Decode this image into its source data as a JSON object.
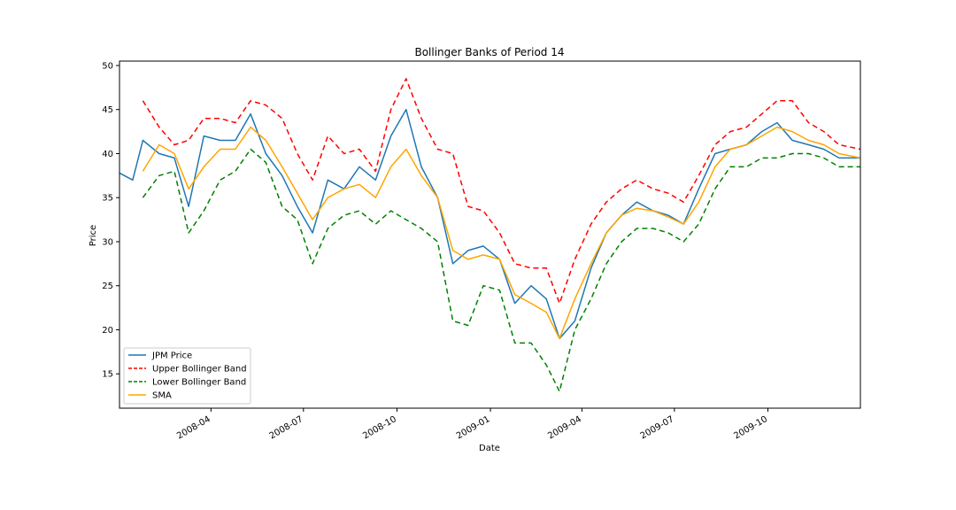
{
  "chart_data": {
    "type": "line",
    "title": "Bollinger Banks of Period 14",
    "xlabel": "Date",
    "ylabel": "Price",
    "xlim": [
      "2008-01-02",
      "2009-12-31"
    ],
    "ylim": [
      11.1,
      50.5
    ],
    "x_ticks": [
      "2008-04",
      "2008-07",
      "2008-10",
      "2009-01",
      "2009-04",
      "2009-07",
      "2009-10"
    ],
    "y_ticks": [
      15,
      20,
      25,
      30,
      35,
      40,
      45,
      50
    ],
    "grid": false,
    "legend_position": "lower-left",
    "x": [
      "2008-01-02",
      "2008-01-15",
      "2008-01-25",
      "2008-02-10",
      "2008-02-25",
      "2008-03-10",
      "2008-03-25",
      "2008-04-10",
      "2008-04-25",
      "2008-05-10",
      "2008-05-25",
      "2008-06-10",
      "2008-06-25",
      "2008-07-10",
      "2008-07-25",
      "2008-08-10",
      "2008-08-25",
      "2008-09-10",
      "2008-09-25",
      "2008-10-10",
      "2008-10-25",
      "2008-11-10",
      "2008-11-25",
      "2008-12-10",
      "2008-12-25",
      "2009-01-10",
      "2009-01-25",
      "2009-02-10",
      "2009-02-25",
      "2009-03-10",
      "2009-03-25",
      "2009-04-10",
      "2009-04-25",
      "2009-05-10",
      "2009-05-25",
      "2009-06-10",
      "2009-06-25",
      "2009-07-10",
      "2009-07-25",
      "2009-08-10",
      "2009-08-25",
      "2009-09-10",
      "2009-09-25",
      "2009-10-10",
      "2009-10-25",
      "2009-11-10",
      "2009-11-25",
      "2009-12-10",
      "2009-12-31"
    ],
    "series": [
      {
        "name": "JPM Price",
        "color": "#1f77b4",
        "dash": "",
        "values": [
          37.8,
          37.0,
          41.5,
          40.0,
          39.5,
          34.0,
          42.0,
          41.5,
          41.5,
          44.5,
          40.0,
          37.5,
          34.0,
          31.0,
          37.0,
          36.0,
          38.5,
          37.0,
          42.0,
          45.0,
          38.5,
          35.0,
          27.5,
          29.0,
          29.5,
          28.0,
          23.0,
          25.0,
          23.5,
          19.0,
          21.0,
          27.0,
          31.0,
          33.0,
          34.5,
          33.5,
          33.0,
          32.0,
          36.0,
          40.0,
          40.5,
          41.0,
          42.5,
          43.5,
          41.5,
          41.0,
          40.5,
          39.5,
          39.5
        ]
      },
      {
        "name": "Upper Bollinger Band",
        "color": "#ff0000",
        "dash": "6,4",
        "values": [
          null,
          null,
          46.0,
          43.0,
          41.0,
          41.5,
          44.0,
          44.0,
          43.5,
          46.0,
          45.5,
          44.0,
          40.0,
          37.0,
          42.0,
          40.0,
          40.5,
          38.0,
          45.0,
          48.5,
          44.0,
          40.5,
          40.0,
          34.0,
          33.5,
          31.0,
          27.5,
          27.0,
          27.0,
          23.0,
          28.0,
          32.0,
          34.5,
          36.0,
          37.0,
          36.0,
          35.5,
          34.5,
          37.5,
          41.0,
          42.5,
          43.0,
          44.5,
          46.0,
          46.0,
          43.5,
          42.5,
          41.0,
          40.5
        ]
      },
      {
        "name": "Lower Bollinger Band",
        "color": "#008000",
        "dash": "6,4",
        "values": [
          null,
          null,
          35.0,
          37.5,
          38.0,
          31.0,
          33.5,
          37.0,
          38.0,
          40.5,
          39.0,
          34.0,
          32.5,
          27.5,
          31.5,
          33.0,
          33.5,
          32.0,
          33.5,
          32.5,
          31.5,
          30.0,
          21.0,
          20.5,
          25.0,
          24.5,
          18.5,
          18.5,
          16.0,
          13.0,
          20.0,
          23.5,
          27.5,
          30.0,
          31.5,
          31.5,
          31.0,
          30.0,
          32.0,
          36.0,
          38.5,
          38.5,
          39.5,
          39.5,
          40.0,
          40.0,
          39.5,
          38.5,
          38.5
        ]
      },
      {
        "name": "SMA",
        "color": "#ffa500",
        "dash": "",
        "values": [
          null,
          null,
          38.0,
          41.0,
          40.0,
          36.0,
          38.5,
          40.5,
          40.5,
          43.0,
          41.5,
          38.5,
          35.5,
          32.5,
          35.0,
          36.0,
          36.5,
          35.0,
          38.5,
          40.5,
          37.5,
          35.0,
          29.0,
          28.0,
          28.5,
          28.0,
          24.0,
          23.0,
          22.0,
          19.0,
          23.5,
          27.5,
          31.0,
          33.0,
          33.8,
          33.5,
          32.8,
          32.0,
          34.5,
          38.5,
          40.5,
          41.0,
          42.0,
          43.0,
          42.5,
          41.5,
          41.0,
          40.0,
          39.5
        ]
      }
    ]
  }
}
